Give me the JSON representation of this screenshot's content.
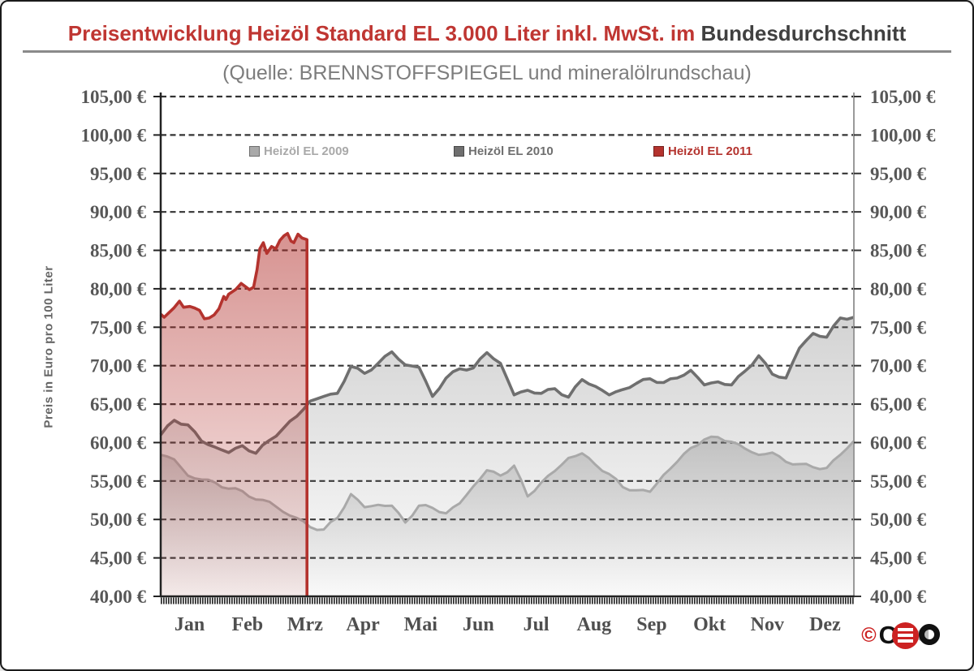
{
  "window": {
    "background": "#ffffff",
    "border_color": "#1a1a1a"
  },
  "title": {
    "red_part": "Preisentwicklung Heizöl Standard EL 3.000 Liter inkl. MwSt. im",
    "dark_part": "Bundesdurchschnitt",
    "red_color": "#bf3632",
    "dark_color": "#404040"
  },
  "subtitle": {
    "text": "(Quelle: BRENNSTOFFSPIEGEL und mineralölrundschau)",
    "color": "#7d7d7d"
  },
  "footer": {
    "copyright_symbol": "©",
    "logo_text": "CETO"
  },
  "chart_data": {
    "type": "area",
    "title": "Preisentwicklung Heizöl Standard EL 3.000 Liter inkl. MwSt. im Bundesdurchschnitt",
    "source_note": "(Quelle: BRENNSTOFFSPIEGEL und mineralölrundschau)",
    "ylabel": "Preis in Euro pro 100 Liter",
    "ylim": [
      40,
      105
    ],
    "ytick_step": 5,
    "currency_suffix": "€",
    "y_tick_labels": [
      "40,00 €",
      "45,00 €",
      "50,00 €",
      "55,00 €",
      "60,00 €",
      "65,00 €",
      "70,00 €",
      "75,00 €",
      "80,00 €",
      "85,00 €",
      "90,00 €",
      "95,00 €",
      "100,00 €",
      "105,00 €"
    ],
    "x_tick_labels": [
      "Jan",
      "Feb",
      "Mrz",
      "Apr",
      "Mai",
      "Jun",
      "Jul",
      "Aug",
      "Sep",
      "Okt",
      "Nov",
      "Dez"
    ],
    "grid": "horizontal-dashed",
    "legend_position": "top-inside",
    "axes_mirrored_right": true,
    "series": [
      {
        "name": "Heizöl EL 2009",
        "color": "#a9a9a9",
        "x_span": [
          0,
          1
        ],
        "values": [
          58.4,
          57.8,
          55.7,
          55.2,
          54.8,
          54.0,
          53.7,
          52.6,
          52.3,
          51.0,
          50.2,
          49.0,
          48.7,
          50.2,
          53.3,
          51.6,
          51.9,
          51.8,
          49.6,
          51.8,
          51.5,
          50.8,
          52.1,
          54.3,
          56.4,
          55.7,
          57.0,
          53.0,
          54.8,
          56.3,
          58.0,
          58.6,
          57.1,
          55.9,
          54.2,
          53.8,
          53.6,
          55.8,
          57.5,
          59.3,
          60.4,
          60.7,
          60.1,
          59.2,
          58.4,
          58.7,
          57.5,
          57.2,
          56.8,
          56.7,
          58.4,
          60.2
        ]
      },
      {
        "name": "Heizöl EL 2010",
        "color": "#6f6f6f",
        "x_span": [
          0,
          1
        ],
        "values": [
          61.0,
          62.9,
          62.3,
          60.2,
          59.4,
          58.7,
          59.6,
          58.6,
          60.3,
          61.8,
          63.4,
          65.4,
          66.0,
          66.4,
          69.9,
          69.0,
          70.3,
          71.8,
          70.1,
          69.8,
          66.0,
          68.4,
          69.6,
          69.7,
          71.7,
          70.3,
          66.2,
          66.8,
          66.4,
          67.0,
          65.9,
          68.2,
          67.3,
          66.2,
          66.9,
          67.7,
          68.3,
          67.8,
          68.4,
          69.4,
          67.5,
          67.9,
          67.5,
          69.3,
          71.3,
          68.9,
          68.4,
          72.3,
          74.2,
          73.7,
          76.2,
          76.3
        ]
      },
      {
        "name": "Heizöl EL 2011",
        "color": "#b4332e",
        "x_span": [
          0,
          0.211
        ],
        "points": [
          [
            0.0,
            76.7
          ],
          [
            0.005,
            76.3
          ],
          [
            0.012,
            76.9
          ],
          [
            0.019,
            77.5
          ],
          [
            0.027,
            78.4
          ],
          [
            0.033,
            77.6
          ],
          [
            0.042,
            77.7
          ],
          [
            0.049,
            77.5
          ],
          [
            0.056,
            77.2
          ],
          [
            0.063,
            76.1
          ],
          [
            0.07,
            76.2
          ],
          [
            0.077,
            76.6
          ],
          [
            0.084,
            77.4
          ],
          [
            0.091,
            79.0
          ],
          [
            0.094,
            78.6
          ],
          [
            0.098,
            79.3
          ],
          [
            0.108,
            79.9
          ],
          [
            0.116,
            80.7
          ],
          [
            0.122,
            80.3
          ],
          [
            0.128,
            79.9
          ],
          [
            0.134,
            80.2
          ],
          [
            0.139,
            82.5
          ],
          [
            0.143,
            85.2
          ],
          [
            0.148,
            86.0
          ],
          [
            0.153,
            84.6
          ],
          [
            0.16,
            85.5
          ],
          [
            0.166,
            85.2
          ],
          [
            0.172,
            86.3
          ],
          [
            0.178,
            86.9
          ],
          [
            0.183,
            87.2
          ],
          [
            0.188,
            86.2
          ],
          [
            0.192,
            86.0
          ],
          [
            0.198,
            87.1
          ],
          [
            0.204,
            86.6
          ],
          [
            0.211,
            86.4
          ]
        ]
      }
    ]
  }
}
